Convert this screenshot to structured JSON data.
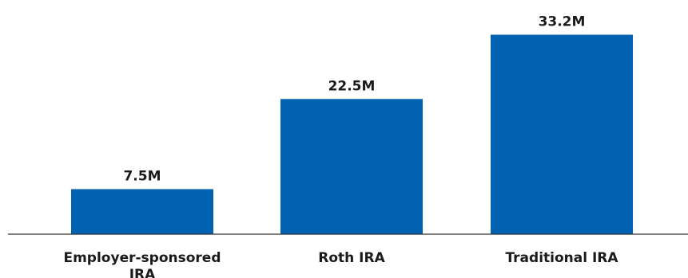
{
  "chart_data": {
    "type": "bar",
    "categories": [
      "Employer-sponsored IRA",
      "Roth IRA",
      "Traditional IRA"
    ],
    "values": [
      7.5,
      22.5,
      33.2
    ],
    "value_labels": [
      "7.5M",
      "22.5M",
      "33.2M"
    ],
    "unit": "M",
    "title": "",
    "xlabel": "",
    "ylabel": "",
    "ylim": [
      0,
      35
    ],
    "grid": false,
    "legend": "none",
    "bar_color": "#0062b1",
    "axis_color": "#333333",
    "text_color": "#1a1a1a"
  }
}
